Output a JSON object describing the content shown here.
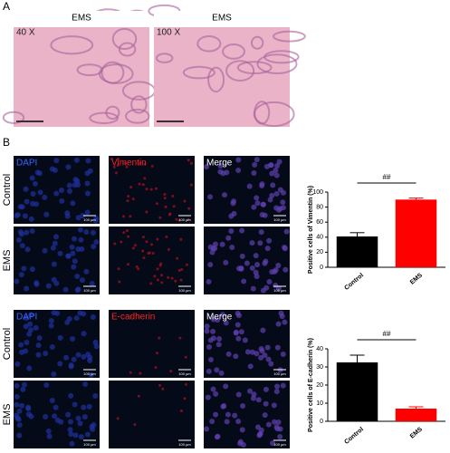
{
  "panel_a": {
    "label": "A",
    "images": [
      {
        "title": "EMS",
        "magnification": "40 X"
      },
      {
        "title": "EMS",
        "magnification": "100 X"
      }
    ]
  },
  "panel_b": {
    "label": "B",
    "grids": [
      {
        "columns": [
          "DAPI",
          "Vimentin",
          "Merge"
        ],
        "rows": [
          "Control",
          "EMS"
        ],
        "scale_bar": "100 µm"
      },
      {
        "columns": [
          "DAPI",
          "E-cadherin",
          "Merge"
        ],
        "rows": [
          "Control",
          "EMS"
        ],
        "scale_bar": "100 µm"
      }
    ]
  },
  "chart_data": [
    {
      "type": "bar",
      "ylabel": "Positive cells of Vimentin (%)",
      "categories": [
        "Control",
        "EMS"
      ],
      "values": [
        41,
        90
      ],
      "errors": [
        5,
        2
      ],
      "colors": [
        "#000000",
        "#ff0000"
      ],
      "ylim": [
        0,
        100
      ],
      "yticks": [
        0,
        20,
        40,
        60,
        80,
        100
      ],
      "annotation": "##"
    },
    {
      "type": "bar",
      "ylabel": "Positive cells of E-cadherin (%)",
      "categories": [
        "Control",
        "EMS"
      ],
      "values": [
        32.5,
        7
      ],
      "errors": [
        4,
        1
      ],
      "colors": [
        "#000000",
        "#ff0000"
      ],
      "ylim": [
        0,
        40
      ],
      "yticks": [
        0,
        10,
        20,
        30,
        40
      ],
      "annotation": "##"
    }
  ]
}
